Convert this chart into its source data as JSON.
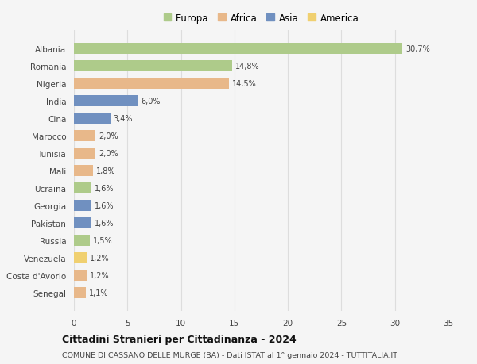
{
  "countries": [
    "Albania",
    "Romania",
    "Nigeria",
    "India",
    "Cina",
    "Marocco",
    "Tunisia",
    "Mali",
    "Ucraina",
    "Georgia",
    "Pakistan",
    "Russia",
    "Venezuela",
    "Costa d'Avorio",
    "Senegal"
  ],
  "values": [
    30.7,
    14.8,
    14.5,
    6.0,
    3.4,
    2.0,
    2.0,
    1.8,
    1.6,
    1.6,
    1.6,
    1.5,
    1.2,
    1.2,
    1.1
  ],
  "labels": [
    "30,7%",
    "14,8%",
    "14,5%",
    "6,0%",
    "3,4%",
    "2,0%",
    "2,0%",
    "1,8%",
    "1,6%",
    "1,6%",
    "1,6%",
    "1,5%",
    "1,2%",
    "1,2%",
    "1,1%"
  ],
  "continents": [
    "Europa",
    "Europa",
    "Africa",
    "Asia",
    "Asia",
    "Africa",
    "Africa",
    "Africa",
    "Europa",
    "Asia",
    "Asia",
    "Europa",
    "America",
    "Africa",
    "Africa"
  ],
  "colors": {
    "Europa": "#aecb8a",
    "Africa": "#e8b88a",
    "Asia": "#7090c0",
    "America": "#f0d070"
  },
  "legend_order": [
    "Europa",
    "Africa",
    "Asia",
    "America"
  ],
  "title": "Cittadini Stranieri per Cittadinanza - 2024",
  "subtitle": "COMUNE DI CASSANO DELLE MURGE (BA) - Dati ISTAT al 1° gennaio 2024 - TUTTITALIA.IT",
  "xlim": [
    0,
    35
  ],
  "xticks": [
    0,
    5,
    10,
    15,
    20,
    25,
    30,
    35
  ],
  "bg_color": "#f5f5f5",
  "grid_color": "#dddddd"
}
